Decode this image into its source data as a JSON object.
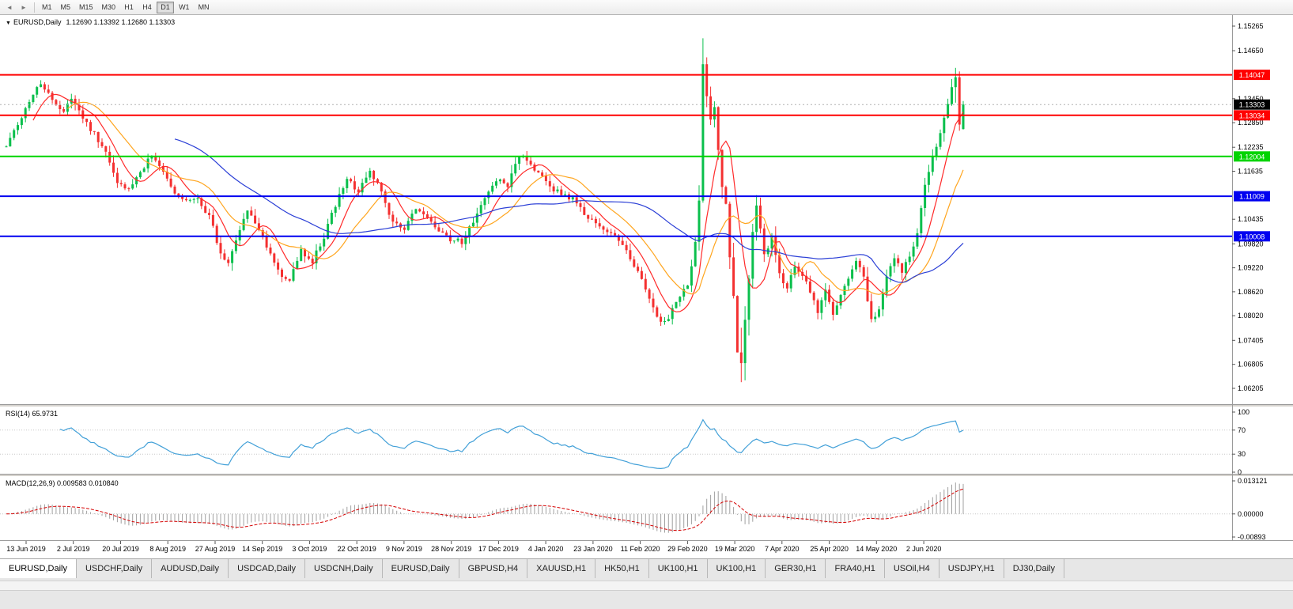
{
  "toolbar": {
    "icons": [
      {
        "name": "scroll-back-icon",
        "glyph": "◄"
      },
      {
        "name": "scroll-forward-icon",
        "glyph": "►"
      }
    ],
    "timeframes": [
      "M1",
      "M5",
      "M15",
      "M30",
      "H1",
      "H4",
      "D1",
      "W1",
      "MN"
    ],
    "active_timeframe": "D1"
  },
  "chart": {
    "header": {
      "dropdown_glyph": "▼",
      "symbol": "EURUSD,Daily",
      "ohlc": "1.12690 1.13392 1.12680 1.13303"
    },
    "price_axis_ticks": [
      "1.15265",
      "1.14650",
      "1.13450",
      "1.12850",
      "1.12235",
      "1.11635",
      "1.10435",
      "1.09820",
      "1.09220",
      "1.08620",
      "1.08020",
      "1.07405",
      "1.06805",
      "1.06205"
    ],
    "current_price": {
      "label": "1.13303",
      "value": 1.13303,
      "bg": "#000000"
    },
    "dates": [
      "13 Jun 2019",
      "2 Jul 2019",
      "20 Jul 2019",
      "8 Aug 2019",
      "27 Aug 2019",
      "14 Sep 2019",
      "3 Oct 2019",
      "22 Oct 2019",
      "9 Nov 2019",
      "28 Nov 2019",
      "17 Dec 2019",
      "4 Jan 2020",
      "23 Jan 2020",
      "11 Feb 2020",
      "29 Feb 2020",
      "19 Mar 2020",
      "7 Apr 2020",
      "25 Apr 2020",
      "14 May 2020",
      "2 Jun 2020"
    ]
  },
  "rsi_panel": {
    "name": "RSI(14)",
    "value": "65.9731",
    "color": "#42a0d8",
    "levels": [
      {
        "label": "100",
        "value": 100,
        "line": false
      },
      {
        "label": "70",
        "value": 70,
        "line": true
      },
      {
        "label": "30",
        "value": 30,
        "line": true
      },
      {
        "label": "0",
        "value": 0,
        "line": false
      }
    ]
  },
  "macd_panel": {
    "name": "MACD(12,26,9)",
    "values": "0.009583 0.010840",
    "axis_labels": [
      {
        "label": "0.013121",
        "value": 0.013121
      },
      {
        "label": "0.00000",
        "value": 0
      },
      {
        "label": "-0.00893",
        "value": -0.00893
      }
    ]
  },
  "tabs": [
    {
      "label": "EURUSD,Daily",
      "active": true
    },
    {
      "label": "USDCHF,Daily",
      "active": false
    },
    {
      "label": "AUDUSD,Daily",
      "active": false
    },
    {
      "label": "USDCAD,Daily",
      "active": false
    },
    {
      "label": "USDCNH,Daily",
      "active": false
    },
    {
      "label": "EURUSD,Daily",
      "active": false
    },
    {
      "label": "GBPUSD,H4",
      "active": false
    },
    {
      "label": "XAUUSD,H1",
      "active": false
    },
    {
      "label": "HK50,H1",
      "active": false
    },
    {
      "label": "UK100,H1",
      "active": false
    },
    {
      "label": "UK100,H1",
      "active": false
    },
    {
      "label": "GER30,H1",
      "active": false
    },
    {
      "label": "FRA40,H1",
      "active": false
    },
    {
      "label": "USOil,H4",
      "active": false
    },
    {
      "label": "USDJPY,H1",
      "active": false
    },
    {
      "label": "DJ30,Daily",
      "active": false
    }
  ],
  "chart_data": {
    "type": "candlestick",
    "symbol": "EURUSD",
    "timeframe": "Daily",
    "bars": 251,
    "price_range": [
      1.06205,
      1.15265
    ],
    "ohlc_last": {
      "open": 1.1269,
      "high": 1.13392,
      "low": 1.1268,
      "close": 1.13303
    },
    "up_color": "#0abf4c",
    "down_color": "#f43030",
    "close_anchors": [
      [
        0,
        1.1225
      ],
      [
        3,
        1.128
      ],
      [
        6,
        1.134
      ],
      [
        9,
        1.1385
      ],
      [
        12,
        1.134
      ],
      [
        15,
        1.131
      ],
      [
        17,
        1.135
      ],
      [
        20,
        1.1295
      ],
      [
        23,
        1.1255
      ],
      [
        26,
        1.121
      ],
      [
        29,
        1.113
      ],
      [
        32,
        1.1115
      ],
      [
        35,
        1.116
      ],
      [
        38,
        1.1205
      ],
      [
        41,
        1.1165
      ],
      [
        44,
        1.111
      ],
      [
        47,
        1.1085
      ],
      [
        50,
        1.1095
      ],
      [
        53,
        1.105
      ],
      [
        56,
        1.096
      ],
      [
        58,
        1.0935
      ],
      [
        61,
        1.101
      ],
      [
        63,
        1.107
      ],
      [
        66,
        1.101
      ],
      [
        69,
        1.096
      ],
      [
        72,
        1.0905
      ],
      [
        74,
        1.089
      ],
      [
        77,
        1.0965
      ],
      [
        80,
        1.094
      ],
      [
        83,
        1.1
      ],
      [
        86,
        1.108
      ],
      [
        89,
        1.114
      ],
      [
        92,
        1.1115
      ],
      [
        95,
        1.1165
      ],
      [
        98,
        1.111
      ],
      [
        101,
        1.1035
      ],
      [
        104,
        1.102
      ],
      [
        107,
        1.107
      ],
      [
        110,
        1.1045
      ],
      [
        113,
        1.101
      ],
      [
        116,
        1.0995
      ],
      [
        119,
        1.0985
      ],
      [
        122,
        1.104
      ],
      [
        125,
        1.109
      ],
      [
        128,
        1.1145
      ],
      [
        131,
        1.1125
      ],
      [
        134,
        1.1205
      ],
      [
        137,
        1.1175
      ],
      [
        140,
        1.1155
      ],
      [
        143,
        1.112
      ],
      [
        146,
        1.1105
      ],
      [
        149,
        1.1085
      ],
      [
        152,
        1.1045
      ],
      [
        155,
        1.103
      ],
      [
        158,
        1.1005
      ],
      [
        161,
        1.0985
      ],
      [
        164,
        1.093
      ],
      [
        167,
        1.087
      ],
      [
        170,
        1.08
      ],
      [
        172,
        1.0785
      ],
      [
        174,
        1.0815
      ],
      [
        176,
        1.085
      ],
      [
        178,
        1.088
      ],
      [
        180,
        1.0985
      ],
      [
        181,
        1.109
      ],
      [
        182,
        1.143
      ],
      [
        183,
        1.1355
      ],
      [
        184,
        1.129
      ],
      [
        185,
        1.133
      ],
      [
        186,
        1.121
      ],
      [
        187,
        1.113
      ],
      [
        188,
        1.1075
      ],
      [
        189,
        1.095
      ],
      [
        190,
        1.0855
      ],
      [
        191,
        1.0715
      ],
      [
        192,
        1.068
      ],
      [
        193,
        1.0795
      ],
      [
        194,
        1.09
      ],
      [
        195,
        1.1015
      ],
      [
        196,
        1.108
      ],
      [
        197,
        1.1025
      ],
      [
        198,
        1.0955
      ],
      [
        200,
        1.0995
      ],
      [
        202,
        1.0905
      ],
      [
        204,
        1.0875
      ],
      [
        206,
        1.092
      ],
      [
        208,
        1.0905
      ],
      [
        210,
        1.086
      ],
      [
        212,
        1.0815
      ],
      [
        214,
        1.0865
      ],
      [
        216,
        1.081
      ],
      [
        218,
        1.085
      ],
      [
        220,
        1.09
      ],
      [
        222,
        1.0945
      ],
      [
        224,
        1.0895
      ],
      [
        226,
        1.079
      ],
      [
        228,
        1.0815
      ],
      [
        230,
        1.0895
      ],
      [
        232,
        1.095
      ],
      [
        234,
        1.0915
      ],
      [
        236,
        1.095
      ],
      [
        238,
        1.101
      ],
      [
        240,
        1.113
      ],
      [
        242,
        1.12
      ],
      [
        244,
        1.1255
      ],
      [
        246,
        1.1335
      ],
      [
        248,
        1.14
      ],
      [
        249,
        1.1275
      ],
      [
        250,
        1.13303
      ]
    ],
    "wick_overrides": [
      [
        182,
        1.1496,
        1.1085
      ],
      [
        192,
        1.0772,
        1.0636
      ],
      [
        248,
        1.1422,
        1.1335
      ],
      [
        250,
        1.13392,
        1.1268
      ]
    ],
    "moving_averages": [
      {
        "period": 8,
        "color": "#ff2a2a"
      },
      {
        "period": 17,
        "color": "#ffa51e"
      },
      {
        "period": 45,
        "color": "#2b3fd6"
      }
    ],
    "horizontal_lines": [
      {
        "label": "1.14047",
        "value": 1.14047,
        "color": "#ff0000"
      },
      {
        "label": "1.13034",
        "value": 1.13034,
        "color": "#ff0000"
      },
      {
        "label": "1.12004",
        "value": 1.12004,
        "color": "#00d400"
      },
      {
        "label": "1.11009",
        "value": 1.11009,
        "color": "#0000f0"
      },
      {
        "label": "1.10008",
        "value": 1.10008,
        "color": "#0000f0"
      }
    ],
    "rsi": {
      "period": 14,
      "current": 65.9731
    },
    "macd": {
      "fast": 12,
      "slow": 26,
      "signal": 9,
      "current_main": 0.009583,
      "current_signal": 0.01084,
      "histogram_color": "#a0a0a0",
      "signal_color": "#d40000"
    }
  }
}
